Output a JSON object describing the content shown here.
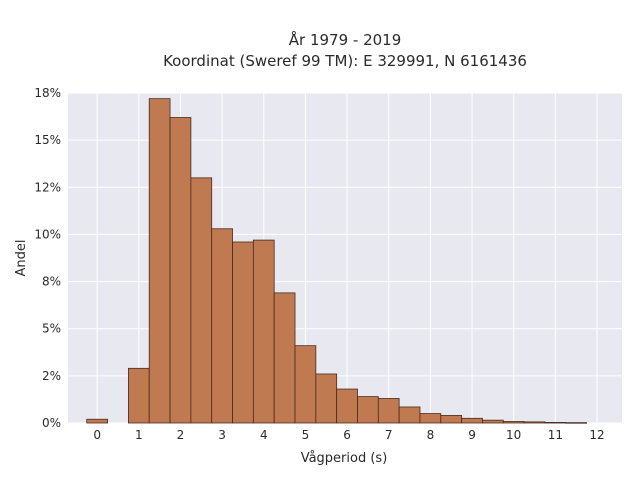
{
  "chart_data": {
    "type": "bar",
    "title_line1": "År 1979 - 2019",
    "title_line2": "Koordinat (Sweref 99 TM): E 329991, N 6161436",
    "xlabel": "Vågperiod (s)",
    "ylabel": "Andel",
    "xlim": [
      -0.7,
      12.6
    ],
    "ylim": [
      0,
      17.5
    ],
    "grid": true,
    "legend": "none",
    "x_ticks": [
      0,
      1,
      2,
      3,
      4,
      5,
      6,
      7,
      8,
      9,
      10,
      11,
      12
    ],
    "x_tick_labels": [
      "0",
      "1",
      "2",
      "3",
      "4",
      "5",
      "6",
      "7",
      "8",
      "9",
      "10",
      "11",
      "12"
    ],
    "y_ticks": [
      0,
      2.5,
      5,
      7.5,
      10,
      12.5,
      15,
      17.5
    ],
    "y_tick_labels": [
      "0%",
      "2%",
      "5%",
      "8%",
      "10%",
      "12%",
      "15%",
      "18%"
    ],
    "bin_width": 0.5,
    "bins": [
      {
        "x_start": -0.25,
        "value": 0.2
      },
      {
        "x_start": 0.25,
        "value": 0.0
      },
      {
        "x_start": 0.75,
        "value": 2.9
      },
      {
        "x_start": 1.25,
        "value": 17.2
      },
      {
        "x_start": 1.75,
        "value": 16.2
      },
      {
        "x_start": 2.25,
        "value": 13.0
      },
      {
        "x_start": 2.75,
        "value": 10.3
      },
      {
        "x_start": 3.25,
        "value": 9.6
      },
      {
        "x_start": 3.75,
        "value": 9.7
      },
      {
        "x_start": 4.25,
        "value": 6.9
      },
      {
        "x_start": 4.75,
        "value": 4.1
      },
      {
        "x_start": 5.25,
        "value": 2.6
      },
      {
        "x_start": 5.75,
        "value": 1.8
      },
      {
        "x_start": 6.25,
        "value": 1.4
      },
      {
        "x_start": 6.75,
        "value": 1.3
      },
      {
        "x_start": 7.25,
        "value": 0.85
      },
      {
        "x_start": 7.75,
        "value": 0.5
      },
      {
        "x_start": 8.25,
        "value": 0.4
      },
      {
        "x_start": 8.75,
        "value": 0.25
      },
      {
        "x_start": 9.25,
        "value": 0.15
      },
      {
        "x_start": 9.75,
        "value": 0.08
      },
      {
        "x_start": 10.25,
        "value": 0.06
      },
      {
        "x_start": 10.75,
        "value": 0.03
      },
      {
        "x_start": 11.25,
        "value": 0.02
      }
    ],
    "colors": {
      "bar_fill": "#c07a52",
      "bar_edge": "#4a2a1a",
      "plot_background": "#e8e8f0",
      "grid": "#ffffff"
    }
  }
}
